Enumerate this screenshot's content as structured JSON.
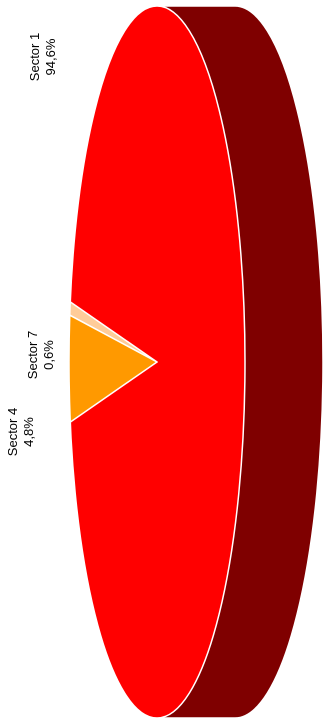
{
  "chart_data": {
    "type": "pie",
    "title": "",
    "style": "3d-extruded",
    "orientation": "rotated-90-ccw",
    "slices": [
      {
        "name": "Sector 1",
        "percent_label": "94,6%",
        "value": 94.6,
        "color": "#ff0000",
        "side_color": "#7f0000"
      },
      {
        "name": "Sector 4",
        "percent_label": "4,8%",
        "value": 4.8,
        "color": "#ff9900",
        "side_color": "#7f4c00"
      },
      {
        "name": "Sector 7",
        "percent_label": "0,6%",
        "value": 0.6,
        "color": "#ffcc99",
        "side_color": "#7f664c"
      }
    ]
  }
}
